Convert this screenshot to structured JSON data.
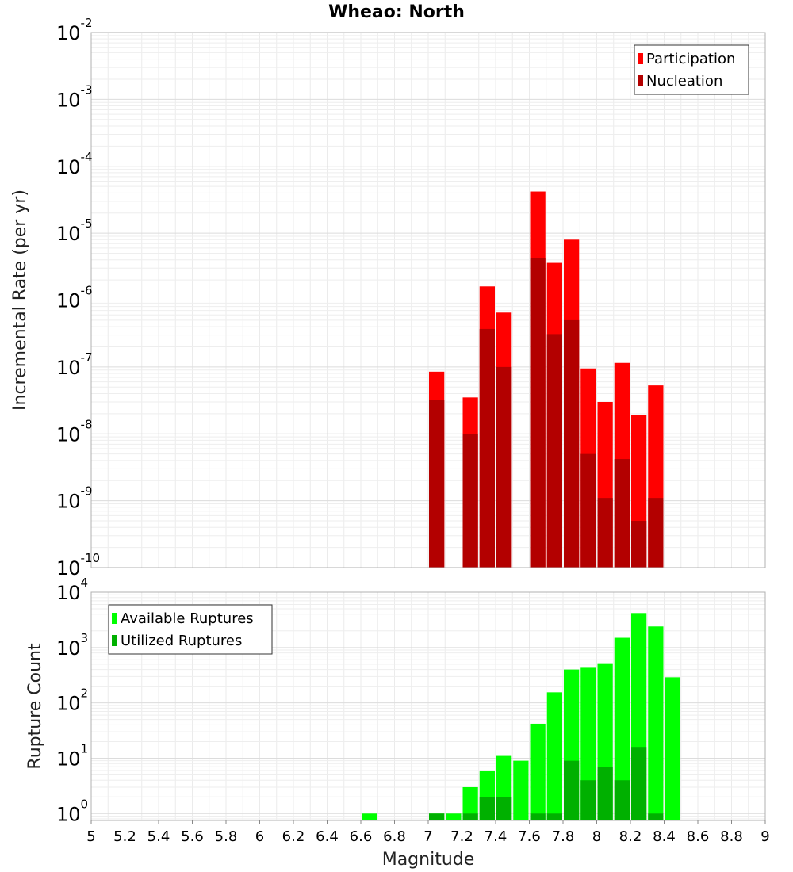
{
  "chart_data": [
    {
      "type": "bar",
      "title": "Wheao: North",
      "xlabel": "",
      "ylabel": "Incremental Rate (per yr)",
      "yscale": "log",
      "ylim": [
        1e-10,
        0.01
      ],
      "xlim": [
        5,
        9
      ],
      "y_tick_exponents": [
        -10,
        -9,
        -8,
        -7,
        -6,
        -5,
        -4,
        -3,
        -2
      ],
      "grid": true,
      "legend_position": "top-right",
      "bar_width": 0.1,
      "x": [
        7.05,
        7.25,
        7.35,
        7.45,
        7.65,
        7.75,
        7.85,
        7.95,
        8.05,
        8.15,
        8.25,
        8.35
      ],
      "series": [
        {
          "name": "Participation",
          "color": "#ff0000",
          "values": [
            8.5e-08,
            3.5e-08,
            1.6e-06,
            6.5e-07,
            4.2e-05,
            3.6e-06,
            8e-06,
            9.5e-08,
            3e-08,
            1.15e-07,
            1.9e-08,
            5.3e-08
          ]
        },
        {
          "name": "Nucleation",
          "color": "#b30000",
          "values": [
            3.2e-08,
            1e-08,
            3.7e-07,
            1e-07,
            4.3e-06,
            3.1e-07,
            5e-07,
            5e-09,
            1.1e-09,
            4.2e-09,
            5e-10,
            1.1e-09
          ]
        }
      ]
    },
    {
      "type": "bar",
      "title": "",
      "xlabel": "Magnitude",
      "ylabel": "Rupture Count",
      "yscale": "log",
      "ylim": [
        0.75,
        10000
      ],
      "xlim": [
        5,
        9
      ],
      "y_tick_exponents": [
        0,
        1,
        2,
        3,
        4
      ],
      "x_ticks": [
        "5",
        "5.2",
        "5.4",
        "5.6",
        "5.8",
        "6",
        "6.2",
        "6.4",
        "6.6",
        "6.8",
        "7",
        "7.2",
        "7.4",
        "7.6",
        "7.8",
        "8",
        "8.2",
        "8.4",
        "8.6",
        "8.8",
        "9"
      ],
      "grid": true,
      "legend_position": "top-left",
      "bar_width": 0.1,
      "x": [
        6.65,
        7.05,
        7.15,
        7.25,
        7.35,
        7.45,
        7.55,
        7.65,
        7.75,
        7.85,
        7.95,
        8.05,
        8.15,
        8.25,
        8.35,
        8.45
      ],
      "series": [
        {
          "name": "Available Ruptures",
          "color": "#00ff00",
          "values": [
            1,
            1,
            1,
            3,
            6,
            11,
            9,
            42,
            155,
            400,
            430,
            520,
            1500,
            4200,
            2400,
            290
          ]
        },
        {
          "name": "Utilized Ruptures",
          "color": "#00b000",
          "values": [
            0,
            1,
            0,
            1,
            2,
            2,
            0,
            1,
            1,
            9,
            4,
            7,
            4,
            16,
            1,
            0
          ]
        }
      ]
    }
  ]
}
